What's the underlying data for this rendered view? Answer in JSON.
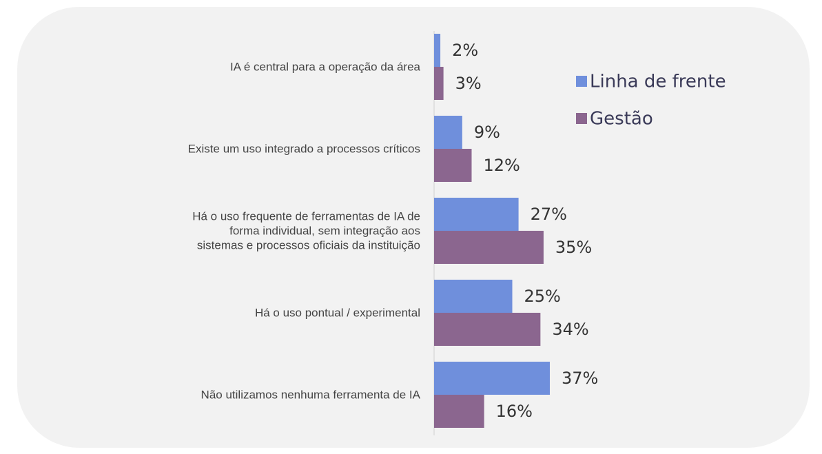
{
  "chart_data": {
    "type": "barh",
    "categories": [
      "IA é central para a operação da área",
      "Existe um uso integrado a processos críticos",
      "Há o uso frequente de ferramentas de IA de\nforma individual, sem integração aos\nsistemas e processos oficiais da instituição",
      "Há o uso pontual / experimental",
      "Não utilizamos nenhuma ferramenta de IA"
    ],
    "series": [
      {
        "name": "Linha de frente",
        "color": "#6f8fdc",
        "values": [
          2,
          9,
          27,
          25,
          37
        ],
        "value_labels": [
          "2%",
          "9%",
          "27%",
          "25%",
          "37%"
        ]
      },
      {
        "name": "Gestão",
        "color": "#8b668f",
        "values": [
          3,
          12,
          35,
          34,
          16
        ],
        "value_labels": [
          "3%",
          "12%",
          "35%",
          "34%",
          "16%"
        ]
      }
    ]
  }
}
